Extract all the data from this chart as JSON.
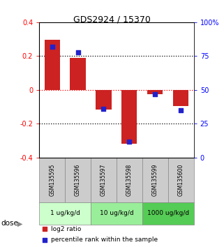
{
  "title": "GDS2924 / 15370",
  "samples": [
    "GSM135595",
    "GSM135596",
    "GSM135597",
    "GSM135598",
    "GSM135599",
    "GSM135600"
  ],
  "log2_ratio": [
    0.295,
    0.19,
    -0.115,
    -0.32,
    -0.025,
    -0.095
  ],
  "percentile_rank": [
    82,
    78,
    36,
    12,
    47,
    35
  ],
  "dose_groups": [
    {
      "label": "1 ug/kg/d",
      "start": 0,
      "end": 2,
      "color": "#ccffcc"
    },
    {
      "label": "10 ug/kg/d",
      "start": 2,
      "end": 4,
      "color": "#99ee99"
    },
    {
      "label": "1000 ug/kg/d",
      "start": 4,
      "end": 6,
      "color": "#55cc55"
    }
  ],
  "ylim_left": [
    -0.4,
    0.4
  ],
  "ylim_right": [
    0,
    100
  ],
  "bar_color": "#cc2222",
  "dot_color": "#2222cc",
  "yticks_left": [
    -0.4,
    -0.2,
    0.0,
    0.2,
    0.4
  ],
  "yticks_right": [
    0,
    25,
    50,
    75,
    100
  ],
  "sample_box_color": "#cccccc",
  "bg_color": "#ffffff"
}
